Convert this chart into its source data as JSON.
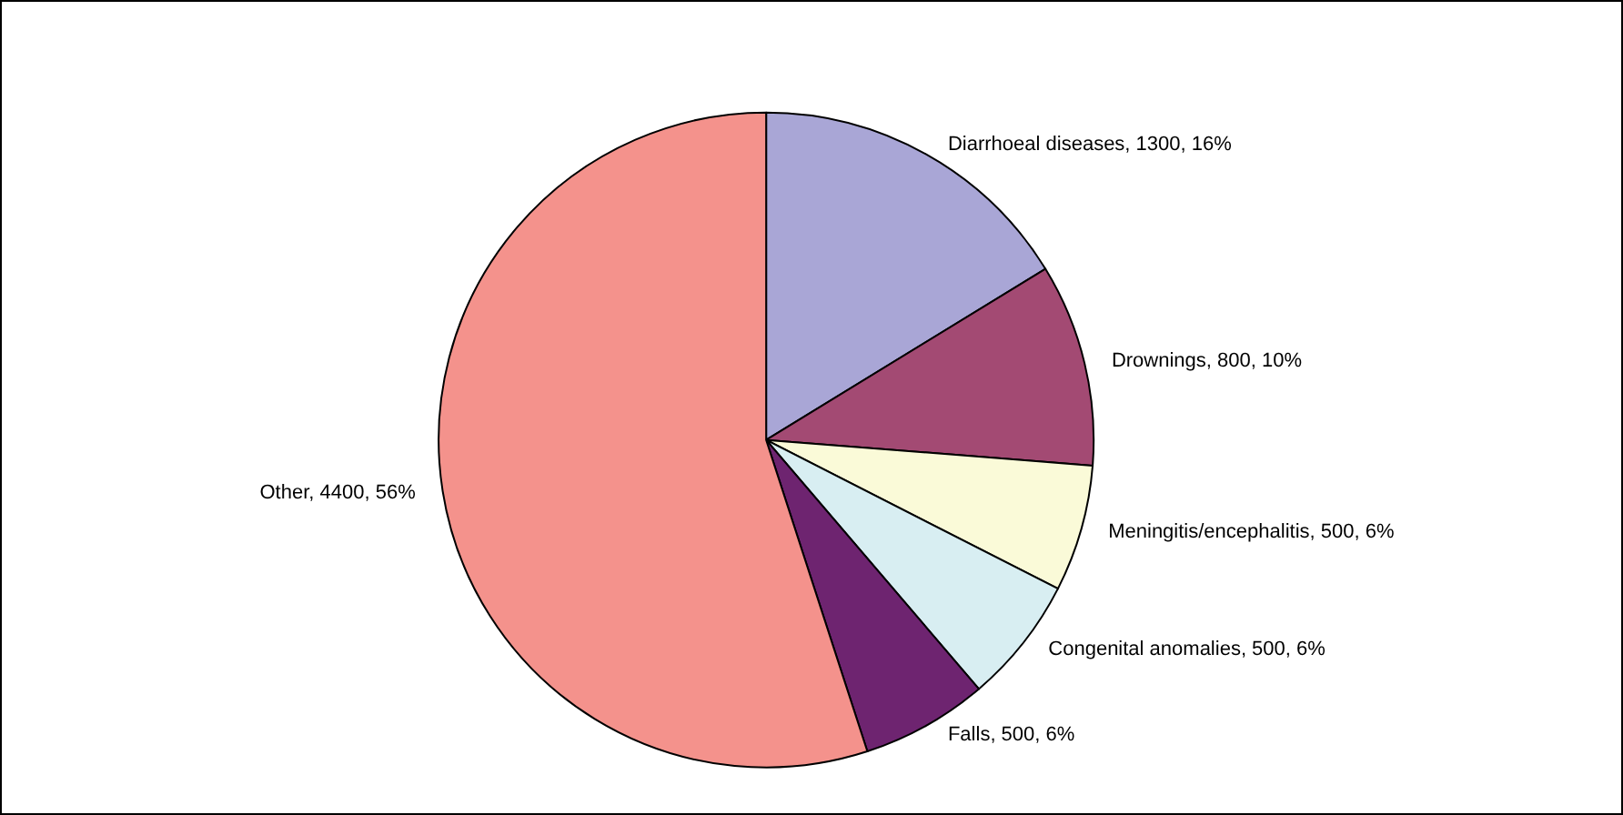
{
  "chart_data": {
    "type": "pie",
    "categories": [
      "Diarrhoeal diseases",
      "Drownings",
      "Meningitis/encephalitis",
      "Congenital anomalies",
      "Falls",
      "Other"
    ],
    "values": [
      1300,
      800,
      500,
      500,
      500,
      4400
    ],
    "value_labels": [
      "1300, 16%",
      "800, 10%",
      "500, 6%",
      "500, 6%",
      "500, 6%",
      "4400, 56%"
    ],
    "colors": [
      "#a9a6d6",
      "#a34a73",
      "#fafad8",
      "#d8eef2",
      "#6e2470",
      "#f4928c"
    ],
    "legend": false
  }
}
